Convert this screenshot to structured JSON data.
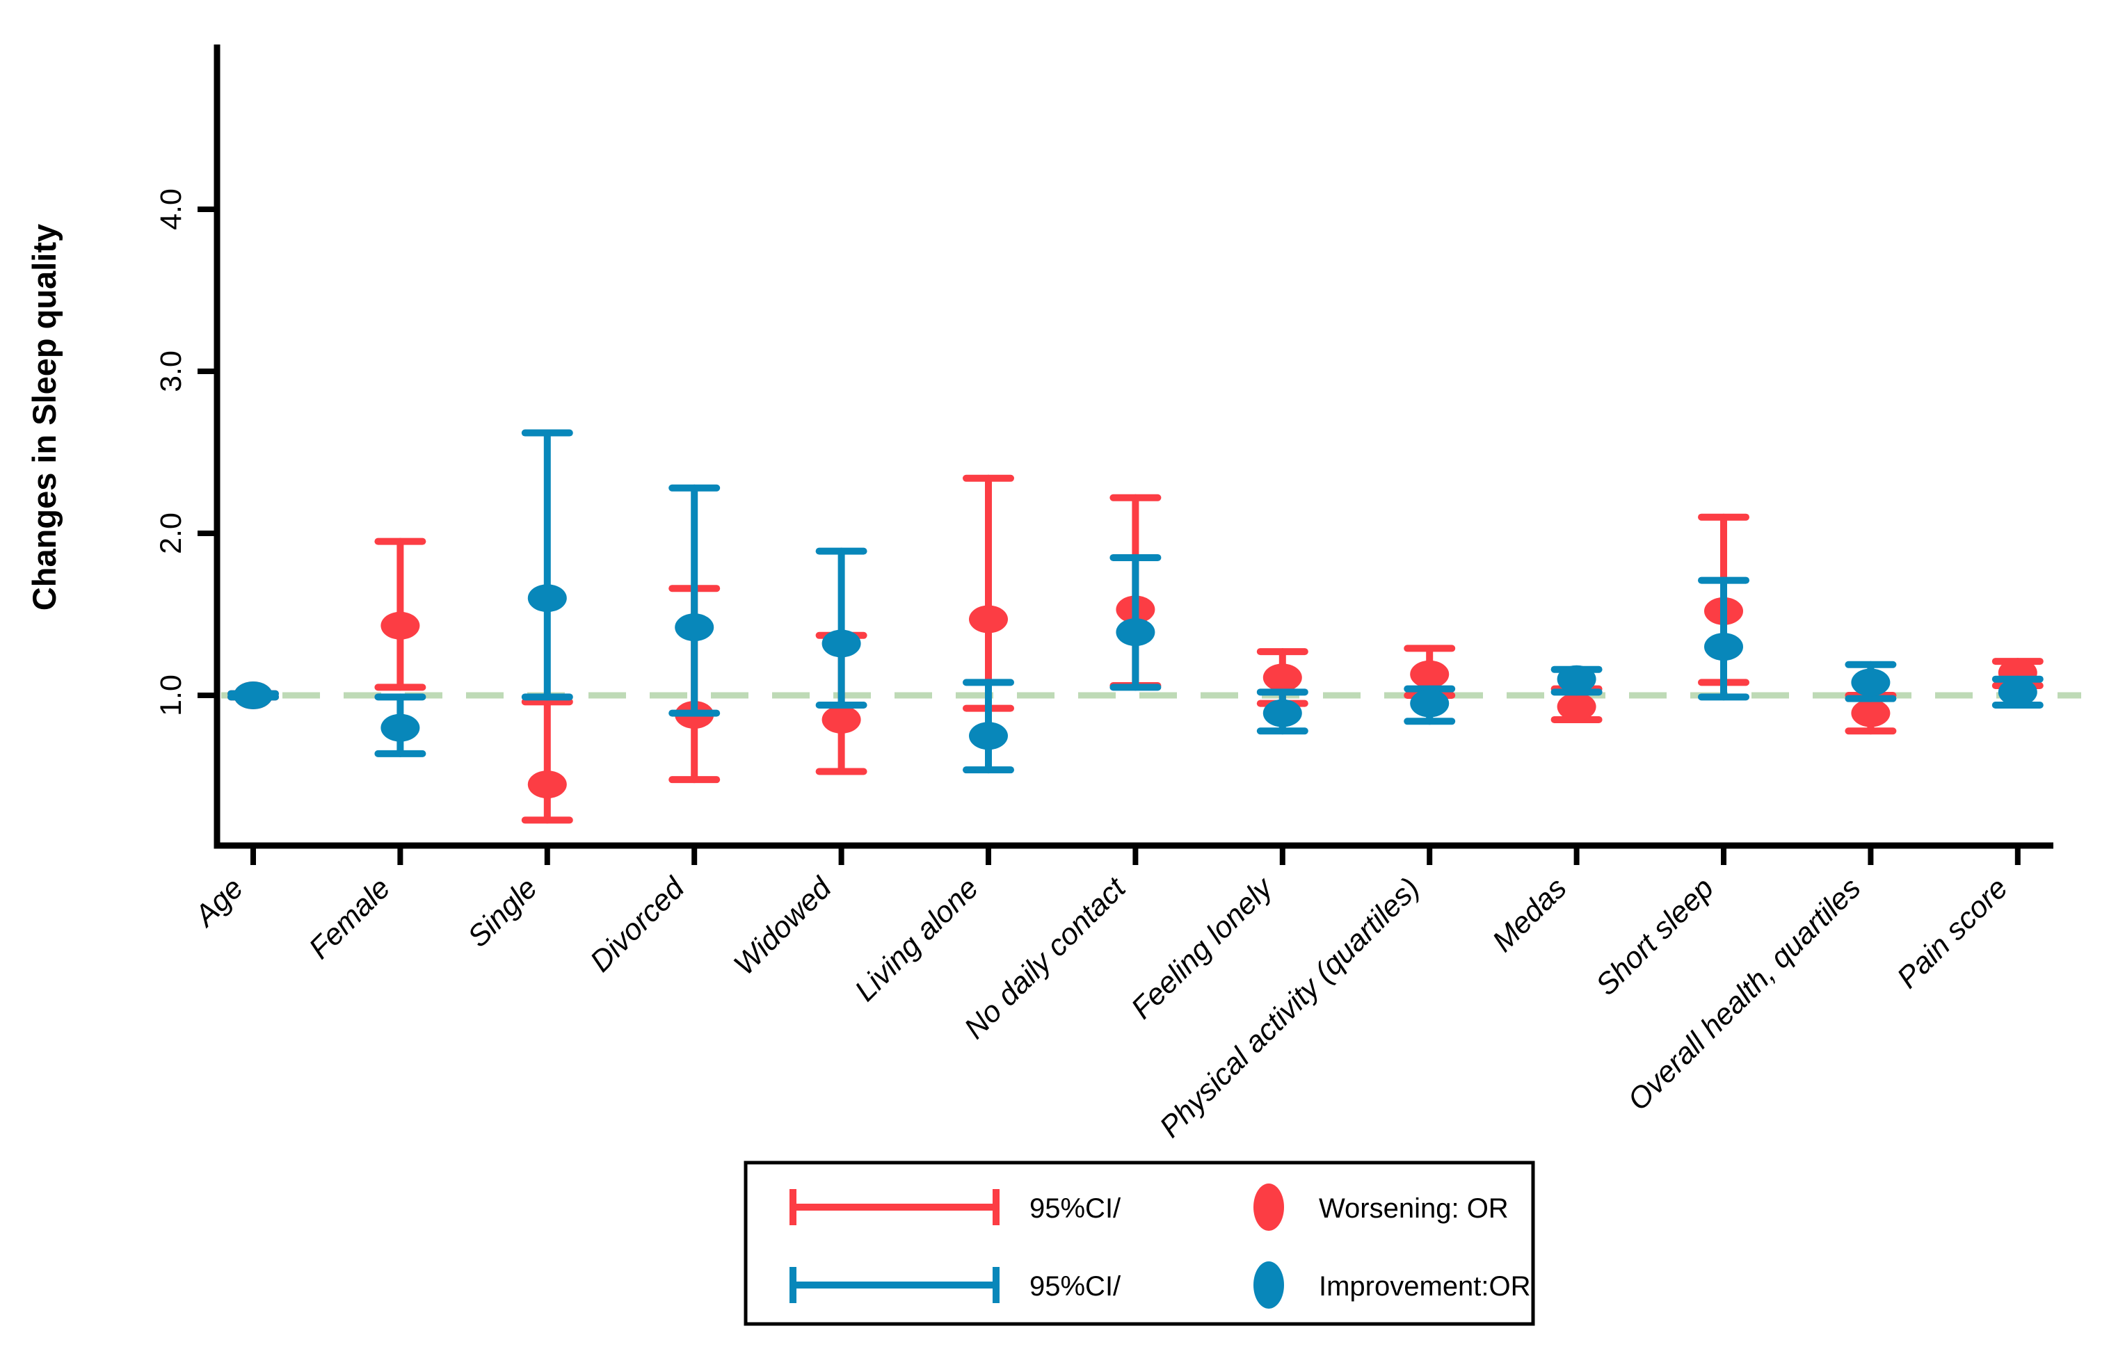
{
  "chart_data": {
    "type": "scatter",
    "title": "",
    "xlabel": "",
    "ylabel": "Changes in Sleep quality",
    "ylim": [
      0.08,
      5.0
    ],
    "yticks": [
      "1.0",
      "2.0",
      "3.0",
      "4.0"
    ],
    "reference_line": 1.0,
    "grid": false,
    "legend_position": "bottom",
    "background": "#FFFFFF",
    "colors": {
      "axis": "#000000",
      "reference_line": "#BEDAB6",
      "worsening": "#FC3D44",
      "improvement": "#0887BA"
    },
    "categories": [
      "Age",
      "Female",
      "Single",
      "Divorced",
      "Widowed",
      "Living alone",
      "No daily contact",
      "Feeling lonely",
      "Physical activity (quartiles)",
      "Medas",
      "Short sleep",
      "Overall health, quartiles",
      "Pain score"
    ],
    "series": [
      {
        "name": "Worsening: OR",
        "color": "#FC3D44",
        "values": [
          1.0,
          1.43,
          0.45,
          0.88,
          0.85,
          1.47,
          1.53,
          1.11,
          1.13,
          0.93,
          1.52,
          0.89,
          1.14
        ],
        "ci_low": [
          0.99,
          1.05,
          0.23,
          0.48,
          0.53,
          0.92,
          1.06,
          0.95,
          1.0,
          0.85,
          1.08,
          0.78,
          1.06
        ],
        "ci_high": [
          1.01,
          1.95,
          0.96,
          1.66,
          1.37,
          2.34,
          2.22,
          1.27,
          1.29,
          1.04,
          2.1,
          1.0,
          1.21
        ]
      },
      {
        "name": "Improvement:OR",
        "color": "#0887BA",
        "values": [
          1.0,
          0.8,
          1.6,
          1.42,
          1.32,
          0.75,
          1.39,
          0.89,
          0.95,
          1.1,
          1.3,
          1.08,
          1.02
        ],
        "ci_low": [
          0.99,
          0.64,
          0.99,
          0.89,
          0.94,
          0.54,
          1.05,
          0.78,
          0.84,
          1.02,
          0.99,
          0.98,
          0.94
        ],
        "ci_high": [
          1.01,
          0.99,
          2.62,
          2.28,
          1.89,
          1.08,
          1.85,
          1.02,
          1.04,
          1.16,
          1.71,
          1.19,
          1.1
        ]
      }
    ],
    "legend": {
      "rows": [
        {
          "ci_label": "95%CI/",
          "series_label": "Worsening: OR"
        },
        {
          "ci_label": "95%CI/",
          "series_label": "Improvement:OR"
        }
      ]
    }
  }
}
